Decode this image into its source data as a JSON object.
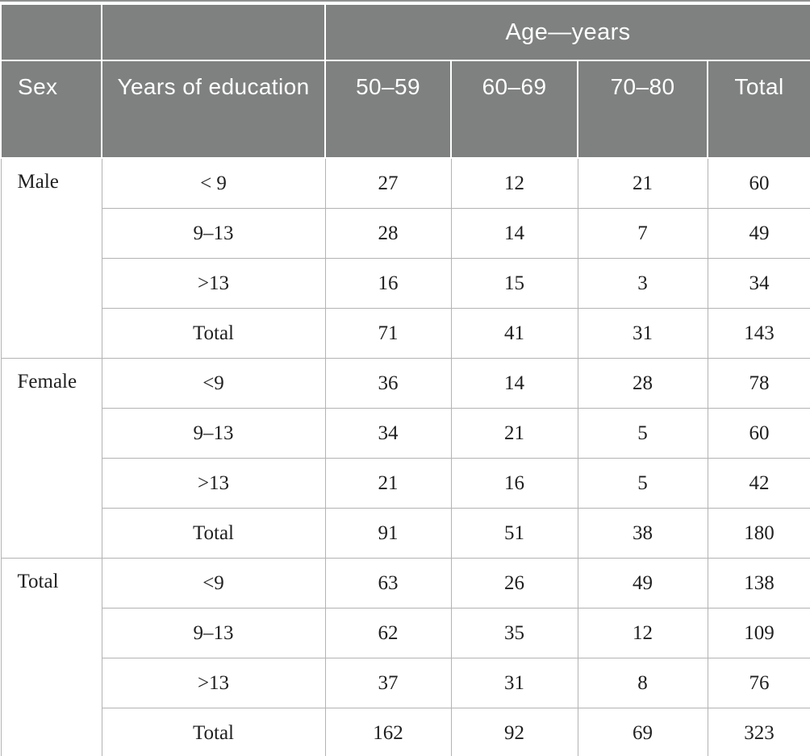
{
  "table": {
    "span_header": "Age—years",
    "columns": [
      "Sex",
      "Years of education",
      "50–59",
      "60–69",
      "70–80",
      "Total"
    ],
    "groups": [
      {
        "sex": "Male",
        "rows": [
          {
            "education": "< 9",
            "values": [
              "27",
              "12",
              "21",
              "60"
            ]
          },
          {
            "education": "9–13",
            "values": [
              "28",
              "14",
              "7",
              "49"
            ]
          },
          {
            "education": ">13",
            "values": [
              "16",
              "15",
              "3",
              "34"
            ]
          },
          {
            "education": "Total",
            "values": [
              "71",
              "41",
              "31",
              "143"
            ]
          }
        ]
      },
      {
        "sex": "Female",
        "rows": [
          {
            "education": "<9",
            "values": [
              "36",
              "14",
              "28",
              "78"
            ]
          },
          {
            "education": "9–13",
            "values": [
              "34",
              "21",
              "5",
              "60"
            ]
          },
          {
            "education": ">13",
            "values": [
              "21",
              "16",
              "5",
              "42"
            ]
          },
          {
            "education": "Total",
            "values": [
              "91",
              "51",
              "38",
              "180"
            ]
          }
        ]
      },
      {
        "sex": "Total",
        "rows": [
          {
            "education": "<9",
            "values": [
              "63",
              "26",
              "49",
              "138"
            ]
          },
          {
            "education": "9–13",
            "values": [
              "62",
              "35",
              "12",
              "109"
            ]
          },
          {
            "education": ">13",
            "values": [
              "37",
              "31",
              "8",
              "76"
            ]
          },
          {
            "education": "Total",
            "values": [
              "162",
              "92",
              "69",
              "323"
            ]
          }
        ]
      }
    ],
    "colors": {
      "header_bg": "#7f8180",
      "header_text": "#ffffff",
      "body_text": "#1f1f1f",
      "grid_line": "#b3b3b3",
      "top_rule": "#8f9190",
      "bottom_rule": "#9e9f9e"
    }
  }
}
